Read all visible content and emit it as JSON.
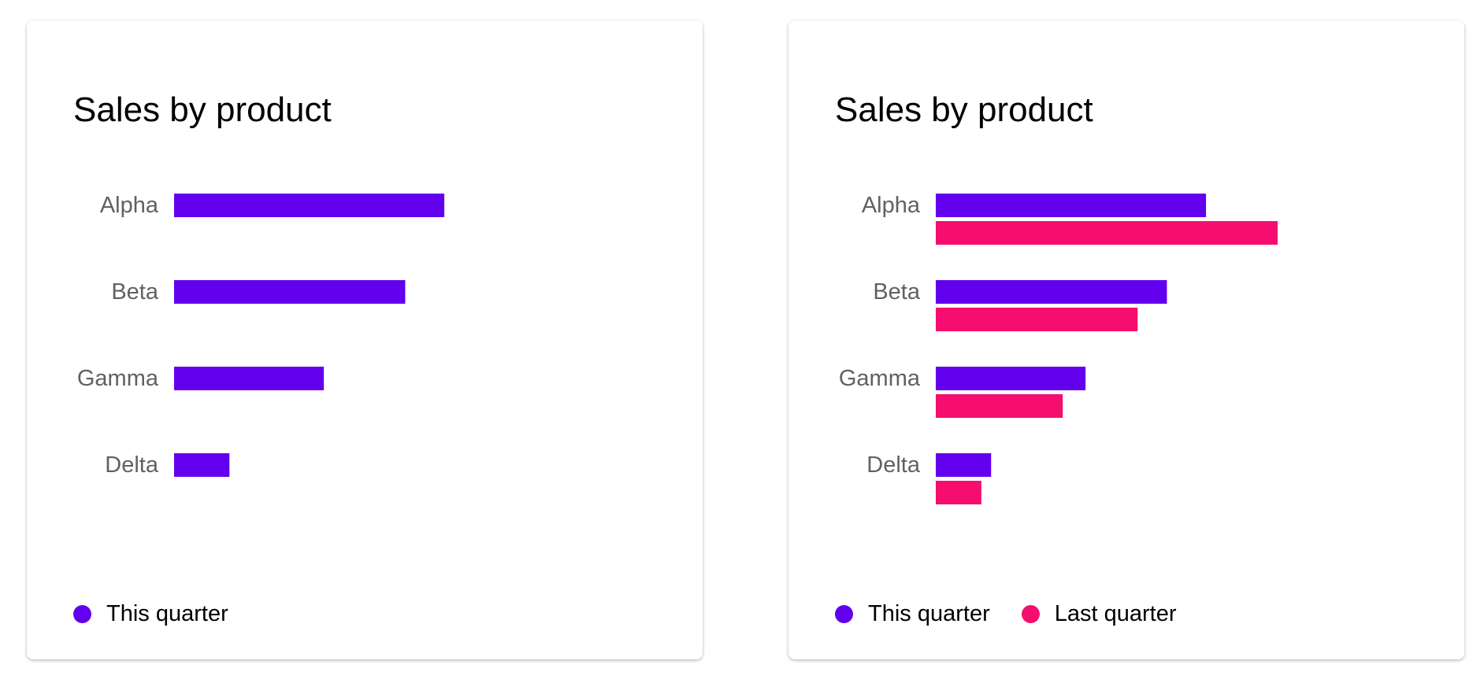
{
  "colors": {
    "this_quarter": "#6200EE",
    "last_quarter": "#F50E6E",
    "category_text": "#616161"
  },
  "chart_data": [
    {
      "type": "bar",
      "orientation": "horizontal",
      "title": "Sales by product",
      "categories": [
        "Alpha",
        "Beta",
        "Gamma",
        "Delta"
      ],
      "series": [
        {
          "name": "This quarter",
          "values": [
            83,
            71,
            46,
            17
          ],
          "color": "#6200EE"
        }
      ],
      "xlim": [
        0,
        150
      ],
      "grid": false,
      "legend_position": "bottom-left"
    },
    {
      "type": "bar",
      "orientation": "horizontal",
      "title": "Sales by product",
      "categories": [
        "Alpha",
        "Beta",
        "Gamma",
        "Delta"
      ],
      "series": [
        {
          "name": "This quarter",
          "values": [
            83,
            71,
            46,
            17
          ],
          "color": "#6200EE"
        },
        {
          "name": "Last quarter",
          "values": [
            105,
            62,
            39,
            14
          ],
          "color": "#F50E6E"
        }
      ],
      "xlim": [
        0,
        150
      ],
      "grid": false,
      "legend_position": "bottom-left"
    }
  ]
}
